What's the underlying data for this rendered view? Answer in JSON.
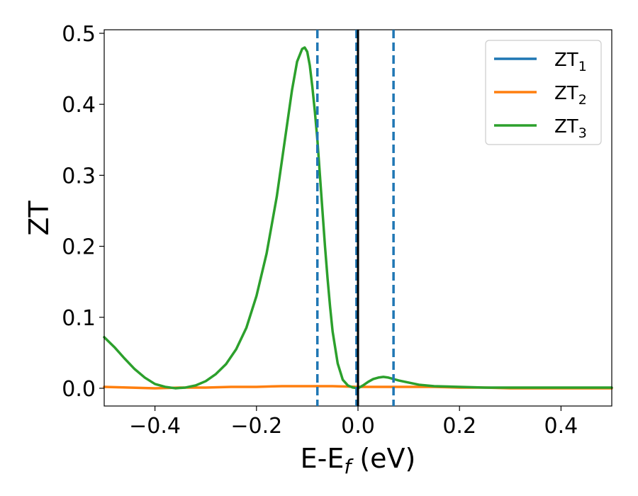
{
  "chart_data": {
    "type": "line",
    "title": "",
    "xlabel": "E-E",
    "xlabel_sub": "f",
    "xlabel_unit": " (eV)",
    "ylabel": "ZT",
    "xlim": [
      -0.5,
      0.5
    ],
    "ylim": [
      -0.025,
      0.505
    ],
    "xticks": [
      -0.4,
      -0.2,
      0.0,
      0.2,
      0.4
    ],
    "xtick_labels": [
      "−0.4",
      "−0.2",
      "0.0",
      "0.2",
      "0.4"
    ],
    "yticks": [
      0.0,
      0.1,
      0.2,
      0.3,
      0.4,
      0.5
    ],
    "ytick_labels": [
      "0.0",
      "0.1",
      "0.2",
      "0.3",
      "0.4",
      "0.5"
    ],
    "grid": false,
    "legend_position": "upper-right",
    "series": [
      {
        "name": "ZT",
        "sub": "1",
        "color": "#1f77b4",
        "x": [
          0.0
        ],
        "y": [
          0.0
        ]
      },
      {
        "name": "ZT",
        "sub": "2",
        "color": "#ff7f0e",
        "x": [
          -0.5,
          -0.45,
          -0.4,
          -0.35,
          -0.3,
          -0.25,
          -0.2,
          -0.15,
          -0.1,
          -0.05,
          0.0,
          0.05,
          0.1,
          0.15,
          0.2,
          0.25,
          0.3,
          0.4,
          0.5
        ],
        "y": [
          0.002,
          0.001,
          0.0,
          0.001,
          0.001,
          0.002,
          0.002,
          0.003,
          0.003,
          0.003,
          0.002,
          0.002,
          0.002,
          0.002,
          0.001,
          0.001,
          0.0,
          0.0,
          0.0
        ]
      },
      {
        "name": "ZT",
        "sub": "3",
        "color": "#2ca02c",
        "x": [
          -0.5,
          -0.48,
          -0.46,
          -0.44,
          -0.42,
          -0.4,
          -0.38,
          -0.36,
          -0.34,
          -0.32,
          -0.3,
          -0.28,
          -0.26,
          -0.24,
          -0.22,
          -0.2,
          -0.18,
          -0.16,
          -0.15,
          -0.14,
          -0.13,
          -0.12,
          -0.11,
          -0.105,
          -0.1,
          -0.095,
          -0.09,
          -0.085,
          -0.08,
          -0.075,
          -0.07,
          -0.065,
          -0.06,
          -0.055,
          -0.05,
          -0.04,
          -0.03,
          -0.02,
          -0.01,
          0.0,
          0.01,
          0.02,
          0.03,
          0.04,
          0.05,
          0.06,
          0.07,
          0.08,
          0.1,
          0.12,
          0.15,
          0.2,
          0.25,
          0.3,
          0.4,
          0.5
        ],
        "y": [
          0.072,
          0.058,
          0.042,
          0.027,
          0.015,
          0.006,
          0.002,
          0.0,
          0.001,
          0.004,
          0.01,
          0.02,
          0.034,
          0.055,
          0.085,
          0.13,
          0.19,
          0.27,
          0.32,
          0.37,
          0.42,
          0.46,
          0.478,
          0.48,
          0.474,
          0.455,
          0.425,
          0.39,
          0.35,
          0.3,
          0.25,
          0.2,
          0.155,
          0.115,
          0.08,
          0.035,
          0.012,
          0.004,
          0.001,
          0.0,
          0.004,
          0.009,
          0.013,
          0.015,
          0.016,
          0.015,
          0.013,
          0.011,
          0.008,
          0.005,
          0.003,
          0.002,
          0.001,
          0.001,
          0.001,
          0.001
        ]
      }
    ],
    "vlines": [
      {
        "x": -0.08,
        "color": "#1f77b4",
        "style": "dashed"
      },
      {
        "x": -0.003,
        "color": "#1f77b4",
        "style": "dashed"
      },
      {
        "x": 0.07,
        "color": "#1f77b4",
        "style": "dashed"
      },
      {
        "x": 0.0,
        "color": "#000000",
        "style": "solid"
      }
    ]
  }
}
